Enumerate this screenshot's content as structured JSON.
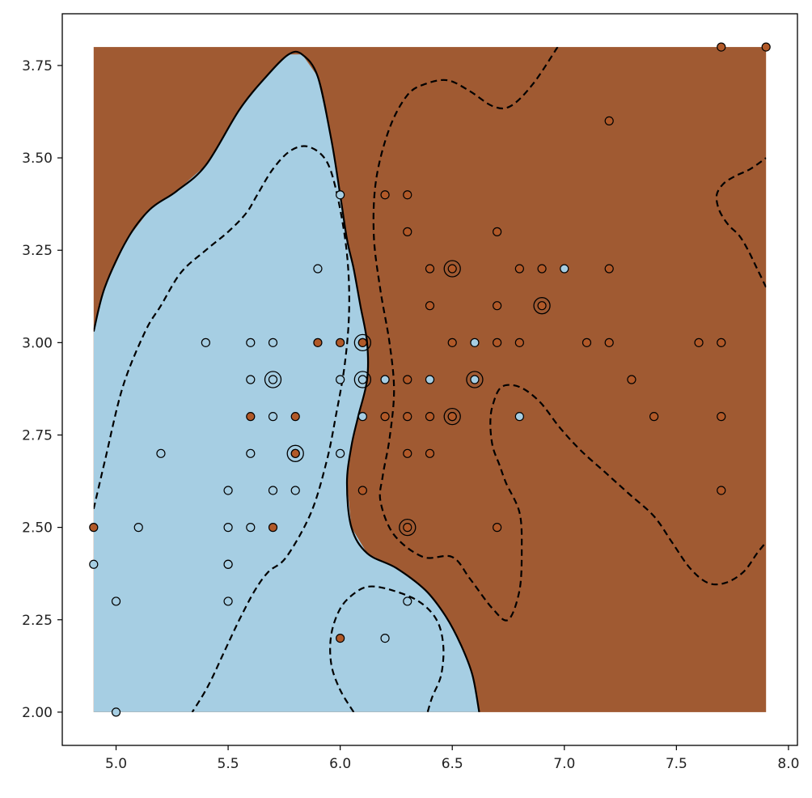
{
  "chart_data": {
    "type": "scatter",
    "title": "",
    "xlabel": "",
    "ylabel": "",
    "xlim": [
      4.76,
      8.04
    ],
    "ylim": [
      1.91,
      3.89
    ],
    "x_ticks": [
      "5.0",
      "5.5",
      "6.0",
      "6.5",
      "7.0",
      "7.5",
      "8.0"
    ],
    "x_tick_values": [
      5.0,
      5.5,
      6.0,
      6.5,
      7.0,
      7.5,
      8.0
    ],
    "y_ticks": [
      "2.00",
      "2.25",
      "2.50",
      "2.75",
      "3.00",
      "3.25",
      "3.50",
      "3.75"
    ],
    "y_tick_values": [
      2.0,
      2.25,
      2.5,
      2.75,
      3.0,
      3.25,
      3.5,
      3.75
    ],
    "grid": false,
    "legend": "none",
    "decision_region_extent": {
      "x": [
        4.9,
        7.9
      ],
      "y": [
        2.0,
        3.8
      ]
    },
    "colors": {
      "class_a_region": "#a6cee3",
      "class_b_region": "#a05a32",
      "class_a_point": "#a6cee3",
      "class_b_point": "#b15928",
      "contour": "#000000"
    },
    "decision_boundary": {
      "level": 0,
      "style": "solid",
      "points": [
        [
          4.9,
          3.03
        ],
        [
          4.95,
          3.15
        ],
        [
          5.05,
          3.28
        ],
        [
          5.15,
          3.36
        ],
        [
          5.27,
          3.41
        ],
        [
          5.4,
          3.48
        ],
        [
          5.55,
          3.63
        ],
        [
          5.67,
          3.72
        ],
        [
          5.77,
          3.78
        ],
        [
          5.83,
          3.78
        ],
        [
          5.9,
          3.72
        ],
        [
          5.96,
          3.55
        ],
        [
          6.0,
          3.4
        ],
        [
          6.03,
          3.28
        ],
        [
          6.06,
          3.2
        ],
        [
          6.09,
          3.1
        ],
        [
          6.12,
          3.0
        ],
        [
          6.12,
          2.9
        ],
        [
          6.08,
          2.8
        ],
        [
          6.05,
          2.72
        ],
        [
          6.03,
          2.62
        ],
        [
          6.05,
          2.5
        ],
        [
          6.12,
          2.43
        ],
        [
          6.25,
          2.39
        ],
        [
          6.38,
          2.33
        ],
        [
          6.47,
          2.26
        ],
        [
          6.54,
          2.18
        ],
        [
          6.59,
          2.1
        ],
        [
          6.62,
          2.0
        ]
      ]
    },
    "margin_contours": [
      {
        "level": 1,
        "style": "dashed",
        "points": [
          [
            4.9,
            2.55
          ],
          [
            4.95,
            2.68
          ],
          [
            5.03,
            2.88
          ],
          [
            5.13,
            3.03
          ],
          [
            5.2,
            3.1
          ],
          [
            5.29,
            3.19
          ],
          [
            5.4,
            3.25
          ],
          [
            5.5,
            3.3
          ],
          [
            5.58,
            3.35
          ],
          [
            5.63,
            3.4
          ],
          [
            5.7,
            3.47
          ],
          [
            5.78,
            3.52
          ],
          [
            5.86,
            3.53
          ],
          [
            5.94,
            3.49
          ],
          [
            5.99,
            3.39
          ],
          [
            6.03,
            3.24
          ],
          [
            6.04,
            3.09
          ],
          [
            6.02,
            2.94
          ],
          [
            5.98,
            2.8
          ],
          [
            5.94,
            2.68
          ],
          [
            5.87,
            2.54
          ],
          [
            5.76,
            2.42
          ],
          [
            5.68,
            2.38
          ],
          [
            5.62,
            2.33
          ],
          [
            5.55,
            2.25
          ],
          [
            5.48,
            2.16
          ],
          [
            5.41,
            2.07
          ],
          [
            5.34,
            2.0
          ]
        ]
      },
      {
        "level": -1,
        "style": "dashed",
        "points": [
          [
            6.97,
            3.8
          ],
          [
            6.86,
            3.7
          ],
          [
            6.76,
            3.64
          ],
          [
            6.68,
            3.64
          ],
          [
            6.58,
            3.68
          ],
          [
            6.48,
            3.71
          ],
          [
            6.38,
            3.7
          ],
          [
            6.3,
            3.67
          ],
          [
            6.22,
            3.58
          ],
          [
            6.16,
            3.44
          ],
          [
            6.15,
            3.29
          ],
          [
            6.18,
            3.14
          ],
          [
            6.22,
            3.0
          ],
          [
            6.24,
            2.87
          ],
          [
            6.22,
            2.74
          ],
          [
            6.19,
            2.64
          ],
          [
            6.18,
            2.57
          ],
          [
            6.24,
            2.48
          ],
          [
            6.37,
            2.42
          ],
          [
            6.5,
            2.42
          ],
          [
            6.58,
            2.36
          ],
          [
            6.68,
            2.28
          ],
          [
            6.75,
            2.25
          ],
          [
            6.8,
            2.33
          ],
          [
            6.81,
            2.44
          ],
          [
            6.8,
            2.54
          ],
          [
            6.74,
            2.62
          ],
          [
            6.71,
            2.67
          ],
          [
            6.68,
            2.72
          ],
          [
            6.67,
            2.78
          ],
          [
            6.68,
            2.83
          ],
          [
            6.72,
            2.88
          ],
          [
            6.8,
            2.88
          ],
          [
            6.89,
            2.84
          ],
          [
            6.98,
            2.77
          ],
          [
            7.07,
            2.71
          ],
          [
            7.18,
            2.65
          ],
          [
            7.29,
            2.59
          ],
          [
            7.4,
            2.53
          ],
          [
            7.48,
            2.46
          ],
          [
            7.56,
            2.39
          ],
          [
            7.64,
            2.35
          ],
          [
            7.72,
            2.35
          ],
          [
            7.8,
            2.38
          ],
          [
            7.86,
            2.43
          ],
          [
            7.9,
            2.46
          ]
        ]
      },
      {
        "level": 1,
        "style": "dashed",
        "points": [
          [
            6.06,
            2.0
          ],
          [
            6.0,
            2.06
          ],
          [
            5.96,
            2.13
          ],
          [
            5.96,
            2.21
          ],
          [
            6.0,
            2.28
          ],
          [
            6.06,
            2.32
          ],
          [
            6.13,
            2.34
          ],
          [
            6.23,
            2.33
          ],
          [
            6.35,
            2.3
          ],
          [
            6.43,
            2.25
          ],
          [
            6.46,
            2.18
          ],
          [
            6.45,
            2.1
          ],
          [
            6.41,
            2.04
          ],
          [
            6.39,
            2.0
          ]
        ]
      },
      {
        "level": -1,
        "style": "dashed",
        "points": [
          [
            7.9,
            3.15
          ],
          [
            7.86,
            3.2
          ],
          [
            7.82,
            3.25
          ],
          [
            7.78,
            3.29
          ],
          [
            7.73,
            3.32
          ],
          [
            7.69,
            3.36
          ],
          [
            7.68,
            3.4
          ],
          [
            7.71,
            3.43
          ],
          [
            7.76,
            3.45
          ],
          [
            7.83,
            3.47
          ],
          [
            7.9,
            3.5
          ]
        ]
      }
    ],
    "series": [
      {
        "values": [
          [
            5.0,
            2.0
          ],
          [
            4.9,
            2.4
          ],
          [
            5.0,
            2.3
          ],
          [
            5.1,
            2.5
          ],
          [
            5.2,
            2.7
          ],
          [
            5.4,
            3.0
          ],
          [
            5.5,
            2.3
          ],
          [
            5.5,
            2.4
          ],
          [
            5.5,
            2.4
          ],
          [
            5.5,
            2.5
          ],
          [
            5.5,
            2.6
          ],
          [
            5.6,
            2.5
          ],
          [
            5.6,
            2.7
          ],
          [
            5.6,
            2.9
          ],
          [
            5.6,
            3.0
          ],
          [
            5.7,
            2.6
          ],
          [
            5.7,
            2.8
          ],
          [
            5.7,
            2.9
          ],
          [
            5.7,
            3.0
          ],
          [
            5.8,
            2.6
          ],
          [
            5.8,
            2.7
          ],
          [
            5.9,
            3.2
          ],
          [
            6.0,
            2.7
          ],
          [
            6.0,
            2.9
          ],
          [
            6.0,
            3.4
          ],
          [
            6.1,
            2.8
          ],
          [
            6.1,
            2.9
          ],
          [
            6.1,
            3.0
          ],
          [
            6.2,
            2.2
          ],
          [
            6.2,
            2.9
          ],
          [
            6.3,
            2.3
          ],
          [
            6.4,
            2.9
          ],
          [
            6.5,
            2.8
          ],
          [
            6.6,
            2.9
          ],
          [
            6.6,
            3.0
          ],
          [
            6.8,
            2.8
          ],
          [
            7.0,
            3.2
          ]
        ]
      },
      {
        "values": [
          [
            4.9,
            2.5
          ],
          [
            5.6,
            2.8
          ],
          [
            5.7,
            2.5
          ],
          [
            5.8,
            2.7
          ],
          [
            5.8,
            2.8
          ],
          [
            5.9,
            3.0
          ],
          [
            6.0,
            2.2
          ],
          [
            6.0,
            3.0
          ],
          [
            6.1,
            2.6
          ],
          [
            6.1,
            3.0
          ],
          [
            6.2,
            2.8
          ],
          [
            6.2,
            3.4
          ],
          [
            6.3,
            2.5
          ],
          [
            6.3,
            2.7
          ],
          [
            6.3,
            2.8
          ],
          [
            6.3,
            2.9
          ],
          [
            6.3,
            3.3
          ],
          [
            6.3,
            3.4
          ],
          [
            6.4,
            2.7
          ],
          [
            6.4,
            2.8
          ],
          [
            6.4,
            3.1
          ],
          [
            6.4,
            3.2
          ],
          [
            6.5,
            2.8
          ],
          [
            6.5,
            3.0
          ],
          [
            6.5,
            3.2
          ],
          [
            6.7,
            2.5
          ],
          [
            6.7,
            3.0
          ],
          [
            6.7,
            3.1
          ],
          [
            6.7,
            3.3
          ],
          [
            6.8,
            3.0
          ],
          [
            6.8,
            3.2
          ],
          [
            6.9,
            3.1
          ],
          [
            6.9,
            3.2
          ],
          [
            7.1,
            3.0
          ],
          [
            7.2,
            3.0
          ],
          [
            7.2,
            3.2
          ],
          [
            7.2,
            3.6
          ],
          [
            7.3,
            2.9
          ],
          [
            7.4,
            2.8
          ],
          [
            7.6,
            3.0
          ],
          [
            7.7,
            2.6
          ],
          [
            7.7,
            2.8
          ],
          [
            7.7,
            3.0
          ],
          [
            7.7,
            3.8
          ],
          [
            7.9,
            3.8
          ]
        ]
      }
    ],
    "support_vectors": [
      [
        5.7,
        2.9
      ],
      [
        5.8,
        2.7
      ],
      [
        6.1,
        3.0
      ],
      [
        6.1,
        2.9
      ],
      [
        6.5,
        3.2
      ],
      [
        6.9,
        3.1
      ],
      [
        6.6,
        2.9
      ],
      [
        6.5,
        2.8
      ],
      [
        6.3,
        2.5
      ]
    ]
  }
}
